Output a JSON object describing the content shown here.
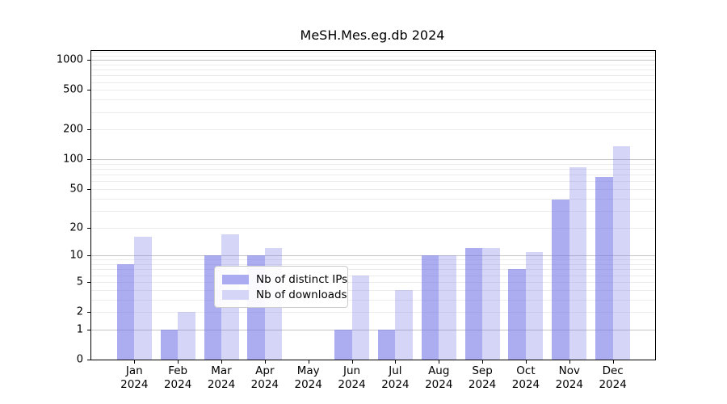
{
  "title": "MeSH.Mes.eg.db 2024",
  "chart_data": {
    "type": "bar",
    "title": "MeSH.Mes.eg.db 2024",
    "categories": [
      "Jan 2024",
      "Feb 2024",
      "Mar 2024",
      "Apr 2024",
      "May 2024",
      "Jun 2024",
      "Jul 2024",
      "Aug 2024",
      "Sep 2024",
      "Oct 2024",
      "Nov 2024",
      "Dec 2024"
    ],
    "series": [
      {
        "name": "Nb of distinct IPs",
        "values": [
          8,
          1,
          10,
          10,
          0,
          1,
          1,
          10,
          12,
          7,
          39,
          67
        ]
      },
      {
        "name": "Nb of downloads",
        "values": [
          16,
          2,
          17,
          12,
          0,
          6,
          4,
          10,
          12,
          11,
          84,
          136
        ]
      }
    ],
    "xlabel": "",
    "ylabel": "",
    "y_axis": {
      "scale": "log1p",
      "tick_values": [
        0,
        1,
        2,
        5,
        10,
        20,
        50,
        100,
        200,
        500,
        1000
      ],
      "range": [
        0,
        1234
      ],
      "minor_gridlines": true
    },
    "legend_position": "inside-bottom-center",
    "grid": "horizontal"
  },
  "colors": {
    "bar_base_rgb": "116,116,232",
    "series_alpha": [
      0.6,
      0.3
    ],
    "legend_swatches": [
      "#ababf1",
      "#d5d5f8"
    ],
    "major_grid": "#c4c4c4",
    "minor_grid": "#ececec",
    "spine": "#000000"
  }
}
